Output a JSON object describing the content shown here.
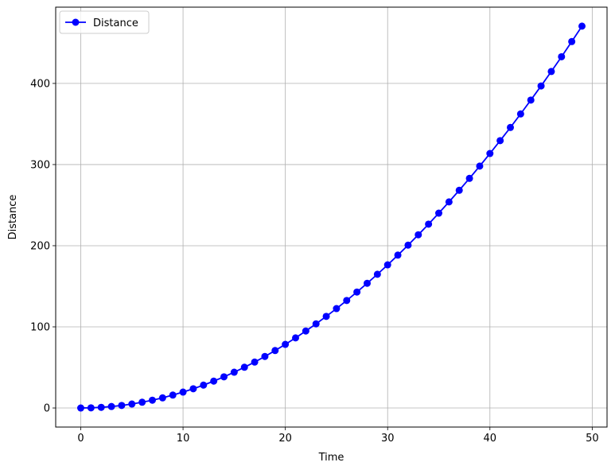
{
  "chart_data": {
    "type": "line",
    "title": "",
    "xlabel": "Time",
    "ylabel": "Distance",
    "xlim": [
      -2.45,
      51.45
    ],
    "ylim": [
      -23.5,
      494.0
    ],
    "xticks": [
      0,
      10,
      20,
      30,
      40,
      50
    ],
    "yticks": [
      0,
      100,
      200,
      300,
      400
    ],
    "grid": true,
    "legend": {
      "position": "top-left"
    },
    "series": [
      {
        "name": "Distance",
        "color": "#0000ff",
        "marker": "circle",
        "x": [
          0,
          1,
          2,
          3,
          4,
          5,
          6,
          7,
          8,
          9,
          10,
          11,
          12,
          13,
          14,
          15,
          16,
          17,
          18,
          19,
          20,
          21,
          22,
          23,
          24,
          25,
          26,
          27,
          28,
          29,
          30,
          31,
          32,
          33,
          34,
          35,
          36,
          37,
          38,
          39,
          40,
          41,
          42,
          43,
          44,
          45,
          46,
          47,
          48,
          49
        ],
        "y": [
          0.0,
          0.2,
          0.8,
          1.8,
          3.1,
          4.9,
          7.1,
          9.6,
          12.5,
          15.9,
          19.6,
          23.7,
          28.2,
          33.1,
          38.4,
          44.1,
          50.2,
          56.6,
          63.5,
          70.8,
          78.4,
          86.4,
          94.9,
          103.7,
          112.9,
          122.5,
          132.5,
          142.9,
          153.7,
          164.8,
          176.4,
          188.4,
          200.7,
          213.5,
          226.6,
          240.1,
          254.0,
          268.3,
          283.0,
          298.1,
          313.6,
          329.5,
          345.7,
          362.4,
          379.5,
          396.9,
          414.7,
          432.9,
          451.6,
          470.6
        ]
      }
    ]
  }
}
